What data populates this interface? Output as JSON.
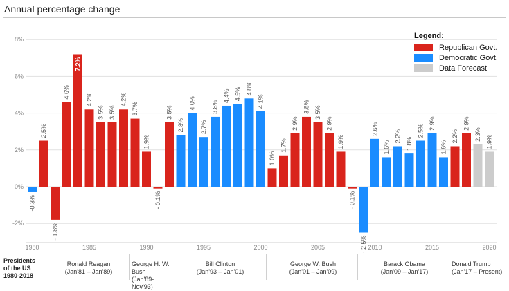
{
  "title": "Annual percentage change",
  "legend": {
    "title": "Legend:",
    "items": [
      {
        "label": "Republican Govt.",
        "color": "#d9241c"
      },
      {
        "label": "Democratic Govt.",
        "color": "#1a8cff"
      },
      {
        "label": "Data Forecast",
        "color": "#cccccc"
      }
    ]
  },
  "presidents_header": [
    "Presidents",
    "of the US",
    "1980-2018"
  ],
  "presidents": [
    {
      "name": "Ronald Reagan",
      "term": "(Jan'81 – Jan'89)"
    },
    {
      "name": "George H. W.",
      "term": "Bush",
      "term2": "(Jan'89-Nov'93)"
    },
    {
      "name": "Bill Clinton",
      "term": "(Jan'93 – Jan'01)"
    },
    {
      "name": "George W. Bush",
      "term": "(Jan'01 – Jan'09)"
    },
    {
      "name": "Barack Obama",
      "term": "(Jan'09 – Jan'17)"
    },
    {
      "name": "Donald Trump",
      "term": "(Jan'17 – Present)"
    }
  ],
  "chart_data": {
    "type": "bar",
    "x": [
      1980,
      1981,
      1982,
      1983,
      1984,
      1985,
      1986,
      1987,
      1988,
      1989,
      1990,
      1991,
      1992,
      1993,
      1994,
      1995,
      1996,
      1997,
      1998,
      1999,
      2000,
      2001,
      2002,
      2003,
      2004,
      2005,
      2006,
      2007,
      2008,
      2009,
      2010,
      2011,
      2012,
      2013,
      2014,
      2015,
      2016,
      2017,
      2018,
      2019,
      2020
    ],
    "values": [
      -0.3,
      2.5,
      -1.8,
      4.6,
      7.2,
      4.2,
      3.5,
      3.5,
      4.2,
      3.7,
      1.9,
      -0.1,
      3.5,
      2.8,
      4.0,
      2.7,
      3.8,
      4.4,
      4.5,
      4.8,
      4.1,
      1.0,
      1.7,
      2.9,
      3.8,
      3.5,
      2.9,
      1.9,
      -0.1,
      -2.5,
      2.6,
      1.6,
      2.2,
      1.8,
      2.5,
      2.9,
      1.6,
      2.2,
      2.9,
      2.3,
      1.9
    ],
    "labels": [
      "-0.3%",
      "2.5%",
      "- 1.8%",
      "4.6%",
      "7.2%",
      "4.2%",
      "3.5%",
      "3.5%",
      "4.2%",
      "3.7%",
      "1.9%",
      "- 0.1%",
      "3.5%",
      "2.8%",
      "4.0%",
      "2.7%",
      "3.8%",
      "4.4%",
      "4.5%",
      "4.8%",
      "4.1%",
      "1.0%",
      "1.7%",
      "2.9%",
      "3.8%",
      "3.5%",
      "2.9%",
      "1.9%",
      "- 0.1%",
      "- 2.5%",
      "2.6%",
      "1.6%",
      "2.2%",
      "1.8%",
      "2.5%",
      "2.9%",
      "1.6%",
      "2.2%",
      "2.9%",
      "2.3%",
      "1.9%"
    ],
    "groups": [
      "Democratic",
      "Republican",
      "Republican",
      "Republican",
      "Republican",
      "Republican",
      "Republican",
      "Republican",
      "Republican",
      "Republican",
      "Republican",
      "Republican",
      "Republican",
      "Democratic",
      "Democratic",
      "Democratic",
      "Democratic",
      "Democratic",
      "Democratic",
      "Democratic",
      "Democratic",
      "Republican",
      "Republican",
      "Republican",
      "Republican",
      "Republican",
      "Republican",
      "Republican",
      "Republican",
      "Democratic",
      "Democratic",
      "Democratic",
      "Democratic",
      "Democratic",
      "Democratic",
      "Democratic",
      "Democratic",
      "Republican",
      "Republican",
      "Forecast",
      "Forecast"
    ],
    "xticks": [
      1980,
      1985,
      1990,
      1995,
      2000,
      2005,
      2010,
      2015,
      2020
    ],
    "yticks": [
      -2,
      0,
      2,
      4,
      6,
      8
    ],
    "ytick_labels": [
      "-2%",
      "0%",
      "2%",
      "4%",
      "6%",
      "8%"
    ],
    "ylim": [
      -2.6,
      8.2
    ],
    "xlabel": "",
    "ylabel": "",
    "grid": true,
    "legend_position": "top-right"
  }
}
